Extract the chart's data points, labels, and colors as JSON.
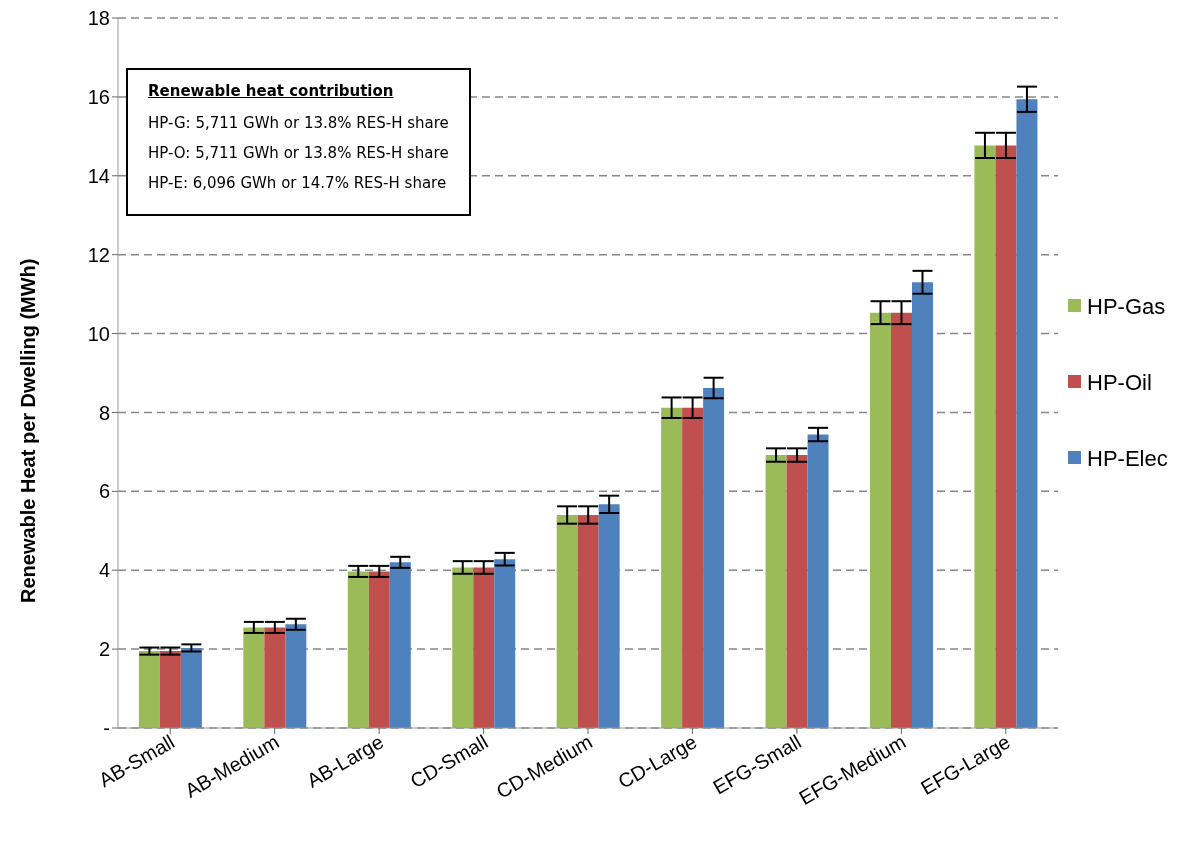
{
  "chart_data": {
    "type": "bar",
    "ylabel": "Renewable Heat per Dwelling (MWh)",
    "categories": [
      "AB-Small",
      "AB-Medium",
      "AB-Large",
      "CD-Small",
      "CD-Medium",
      "CD-Large",
      "EFG-Small",
      "EFG-Medium",
      "EFG-Large"
    ],
    "series": [
      {
        "name": "HP-Gas",
        "color": "#9bbb59",
        "values": [
          1.95,
          2.55,
          3.97,
          4.07,
          5.4,
          8.12,
          6.92,
          10.53,
          14.77
        ],
        "errors": [
          0.09,
          0.14,
          0.14,
          0.16,
          0.22,
          0.26,
          0.17,
          0.29,
          0.32
        ]
      },
      {
        "name": "HP-Oil",
        "color": "#c0504d",
        "values": [
          1.95,
          2.55,
          3.97,
          4.07,
          5.4,
          8.12,
          6.92,
          10.53,
          14.77
        ],
        "errors": [
          0.09,
          0.14,
          0.14,
          0.16,
          0.22,
          0.26,
          0.17,
          0.29,
          0.32
        ]
      },
      {
        "name": "HP-Elec",
        "color": "#4f81bd",
        "values": [
          2.03,
          2.63,
          4.2,
          4.28,
          5.67,
          8.62,
          7.44,
          11.3,
          15.94
        ],
        "errors": [
          0.09,
          0.14,
          0.14,
          0.16,
          0.22,
          0.26,
          0.17,
          0.29,
          0.32
        ]
      }
    ],
    "ylim": [
      0,
      18
    ],
    "yticks": [
      {
        "value": 0,
        "label": "-"
      },
      2,
      4,
      6,
      8,
      10,
      12,
      14,
      16,
      18
    ],
    "grid": "y",
    "legend": "right",
    "annotations": [
      "Renewable heat contribution",
      "HP-G: 5,711 GWh or 13.8% RES-H share",
      "HP-O: 5,711 GWh or 13.8% RES-H share",
      "HP-E: 6,096 GWh or 14.7% RES-H share"
    ]
  }
}
